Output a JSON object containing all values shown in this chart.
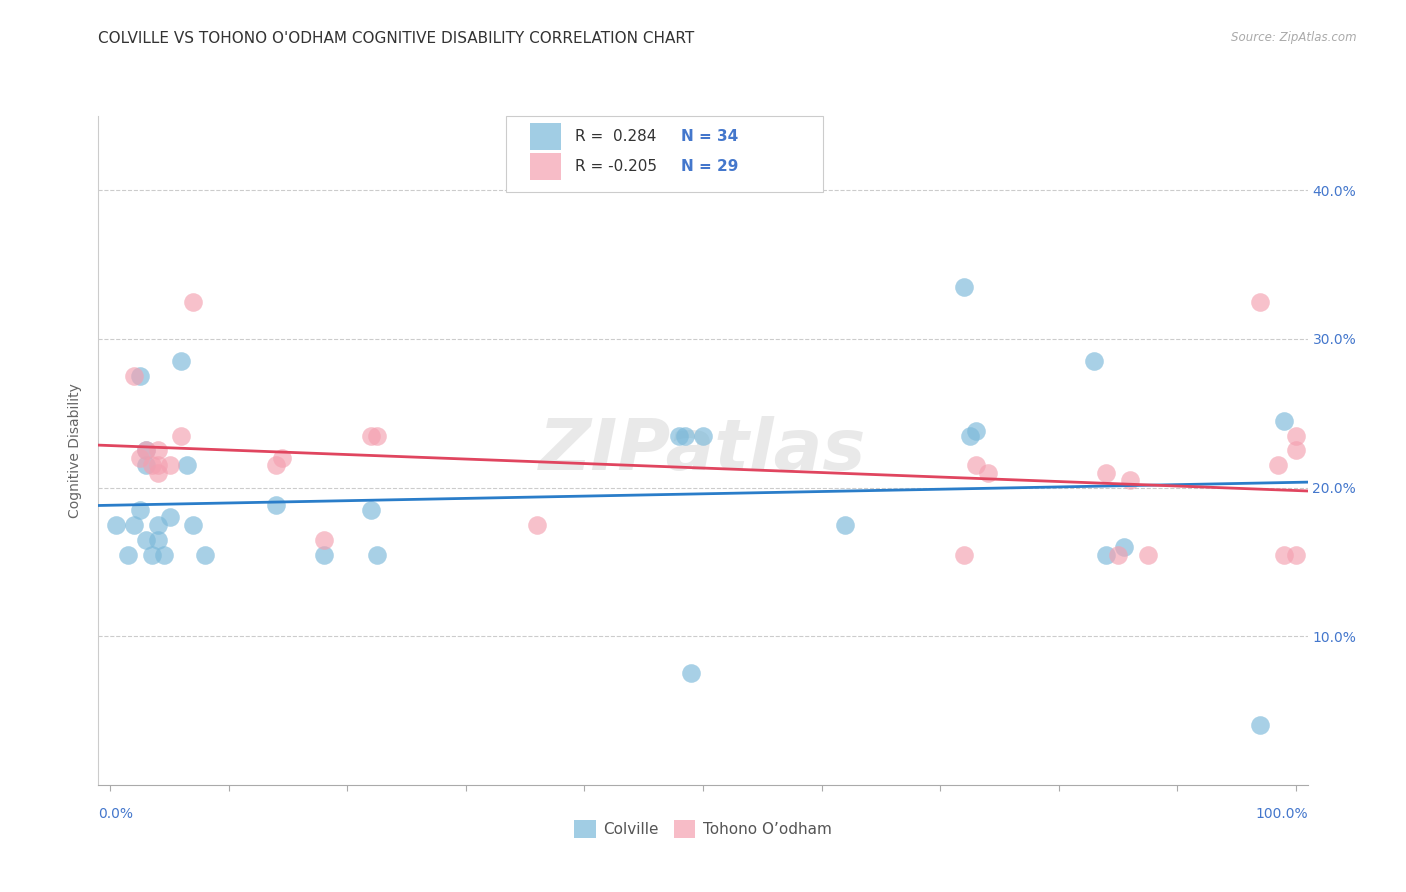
{
  "title": "COLVILLE VS TOHONO O'ODHAM COGNITIVE DISABILITY CORRELATION CHART",
  "source": "Source: ZipAtlas.com",
  "ylabel": "Cognitive Disability",
  "ytick_labels": [
    "10.0%",
    "20.0%",
    "30.0%",
    "40.0%"
  ],
  "ytick_vals": [
    0.1,
    0.2,
    0.3,
    0.4
  ],
  "xtick_vals": [
    0.0,
    0.1,
    0.2,
    0.3,
    0.4,
    0.5,
    0.6,
    0.7,
    0.8,
    0.9,
    1.0
  ],
  "xlim": [
    -0.01,
    1.01
  ],
  "ylim": [
    0.0,
    0.45
  ],
  "colville_R": "0.284",
  "colville_N": "34",
  "tohono_R": "-0.205",
  "tohono_N": "29",
  "legend_colville": "Colville",
  "legend_tohono": "Tohono O’odham",
  "colville_color": "#7ab8d9",
  "tohono_color": "#f4a0b0",
  "colville_line_color": "#2a7dc9",
  "tohono_line_color": "#e0455f",
  "axis_tick_color": "#4477cc",
  "colville_x": [
    0.005,
    0.015,
    0.02,
    0.025,
    0.025,
    0.03,
    0.03,
    0.03,
    0.035,
    0.04,
    0.04,
    0.045,
    0.05,
    0.06,
    0.065,
    0.07,
    0.08,
    0.14,
    0.18,
    0.22,
    0.225,
    0.48,
    0.485,
    0.49,
    0.5,
    0.62,
    0.72,
    0.725,
    0.73,
    0.83,
    0.84,
    0.855,
    0.97,
    0.99
  ],
  "colville_y": [
    0.175,
    0.155,
    0.175,
    0.185,
    0.275,
    0.225,
    0.215,
    0.165,
    0.155,
    0.175,
    0.165,
    0.155,
    0.18,
    0.285,
    0.215,
    0.175,
    0.155,
    0.188,
    0.155,
    0.185,
    0.155,
    0.235,
    0.235,
    0.075,
    0.235,
    0.175,
    0.335,
    0.235,
    0.238,
    0.285,
    0.155,
    0.16,
    0.04,
    0.245
  ],
  "tohono_x": [
    0.02,
    0.025,
    0.03,
    0.035,
    0.04,
    0.04,
    0.04,
    0.05,
    0.06,
    0.07,
    0.14,
    0.145,
    0.18,
    0.22,
    0.225,
    0.36,
    0.72,
    0.73,
    0.74,
    0.84,
    0.85,
    0.86,
    0.875,
    0.97,
    0.985,
    0.99,
    1.0,
    1.0,
    1.0
  ],
  "tohono_y": [
    0.275,
    0.22,
    0.225,
    0.215,
    0.225,
    0.215,
    0.21,
    0.215,
    0.235,
    0.325,
    0.215,
    0.22,
    0.165,
    0.235,
    0.235,
    0.175,
    0.155,
    0.215,
    0.21,
    0.21,
    0.155,
    0.205,
    0.155,
    0.325,
    0.215,
    0.155,
    0.225,
    0.155,
    0.235
  ],
  "background_color": "#ffffff",
  "grid_color": "#cccccc",
  "watermark": "ZIPatlas"
}
